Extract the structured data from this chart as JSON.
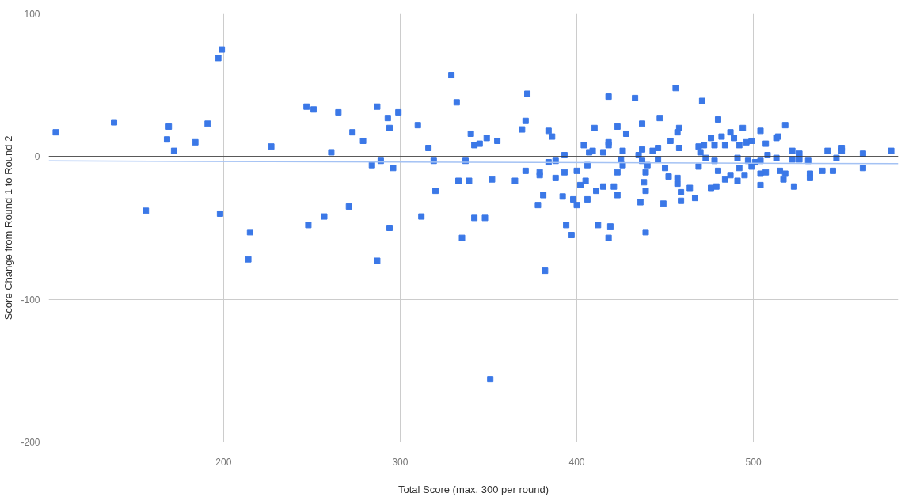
{
  "chart_data": {
    "type": "scatter",
    "xlabel": "Total Score (max. 300 per round)",
    "ylabel": "Score Change from Round 1 to Round 2",
    "xlim": [
      101,
      582
    ],
    "ylim": [
      -200,
      100
    ],
    "xticks": [
      200,
      300,
      400,
      500
    ],
    "yticks": [
      -200,
      -100,
      0,
      100
    ],
    "grid": true,
    "ref_lines": [
      {
        "axis": "y",
        "value": 0,
        "color": "#333333"
      }
    ],
    "series": [
      {
        "marker": "square",
        "color": "#3b78e7",
        "x": [
          105,
          138,
          169,
          168,
          172,
          184,
          191,
          197,
          199,
          156,
          198,
          215,
          214,
          227,
          247,
          251,
          248,
          265,
          287,
          293,
          299,
          273,
          279,
          294,
          261,
          284,
          289,
          296,
          310,
          329,
          332,
          316,
          319,
          337,
          340,
          342,
          345,
          349,
          333,
          339,
          352,
          320,
          271,
          257,
          312,
          342,
          348,
          294,
          335,
          287,
          382,
          351,
          372,
          418,
          433,
          371,
          369,
          384,
          386,
          355,
          410,
          423,
          428,
          437,
          447,
          453,
          404,
          418,
          418,
          409,
          407,
          415,
          426,
          437,
          443,
          446,
          435,
          393,
          384,
          388,
          425,
          426,
          437,
          440,
          446,
          406,
          371,
          379,
          379,
          388,
          393,
          400,
          423,
          439,
          450,
          365,
          405,
          402,
          415,
          411,
          421,
          423,
          438,
          439,
          452,
          381,
          378,
          392,
          398,
          400,
          406,
          436,
          449,
          394,
          397,
          412,
          419,
          418,
          439,
          456,
          471,
          480,
          458,
          457,
          458,
          494,
          504,
          518,
          482,
          487,
          489,
          476,
          472,
          469,
          478,
          484,
          492,
          496,
          499,
          507,
          513,
          514,
          470,
          473,
          478,
          491,
          497,
          501,
          504,
          508,
          513,
          522,
          526,
          522,
          526,
          531,
          542,
          550,
          550,
          547,
          562,
          578,
          469,
          480,
          492,
          499,
          504,
          507,
          515,
          518,
          517,
          532,
          532,
          539,
          545,
          562,
          484,
          487,
          491,
          495,
          457,
          457,
          464,
          459,
          459,
          467,
          476,
          479,
          504,
          523
        ],
        "values": [
          17,
          24,
          21,
          12,
          4,
          10,
          23,
          69,
          75,
          -38,
          -40,
          -53,
          -72,
          7,
          35,
          33,
          -48,
          31,
          35,
          27,
          31,
          17,
          11,
          20,
          3,
          -6,
          -3,
          -8,
          22,
          57,
          38,
          6,
          -3,
          -3,
          16,
          8,
          9,
          13,
          -17,
          -17,
          -16,
          -24,
          -35,
          -42,
          -42,
          -43,
          -43,
          -50,
          -57,
          -73,
          -80,
          -156,
          44,
          42,
          41,
          25,
          19,
          18,
          14,
          11,
          20,
          21,
          16,
          23,
          27,
          11,
          8,
          10,
          8,
          4,
          3,
          3,
          4,
          5,
          4,
          6,
          1,
          1,
          -4,
          -3,
          -2,
          -6,
          -3,
          -6,
          -2,
          -6,
          -10,
          -11,
          -13,
          -15,
          -11,
          -10,
          -11,
          -11,
          -8,
          -17,
          -17,
          -20,
          -21,
          -24,
          -21,
          -27,
          -18,
          -24,
          -14,
          -27,
          -34,
          -28,
          -30,
          -34,
          -30,
          -32,
          -33,
          -48,
          -55,
          -48,
          -49,
          -57,
          -53,
          48,
          39,
          26,
          20,
          17,
          6,
          20,
          18,
          22,
          14,
          17,
          13,
          13,
          8,
          7,
          8,
          8,
          8,
          10,
          11,
          9,
          13,
          14,
          3,
          -1,
          -3,
          -1,
          -3,
          -4,
          -3,
          1,
          -1,
          4,
          2,
          -2,
          -2,
          -3,
          4,
          6,
          4,
          -1,
          2,
          4,
          -7,
          -10,
          -8,
          -7,
          -12,
          -11,
          -10,
          -12,
          -16,
          -12,
          -15,
          -10,
          -10,
          -8,
          -16,
          -13,
          -17,
          -13,
          -15,
          -19,
          -22,
          -25,
          -31,
          -29,
          -22,
          -21,
          -20,
          -21
        ]
      },
      {
        "type": "line",
        "marker": "none",
        "color": "#a4c2f4",
        "x": [
          101,
          582
        ],
        "values": [
          -3,
          -5
        ]
      }
    ]
  }
}
